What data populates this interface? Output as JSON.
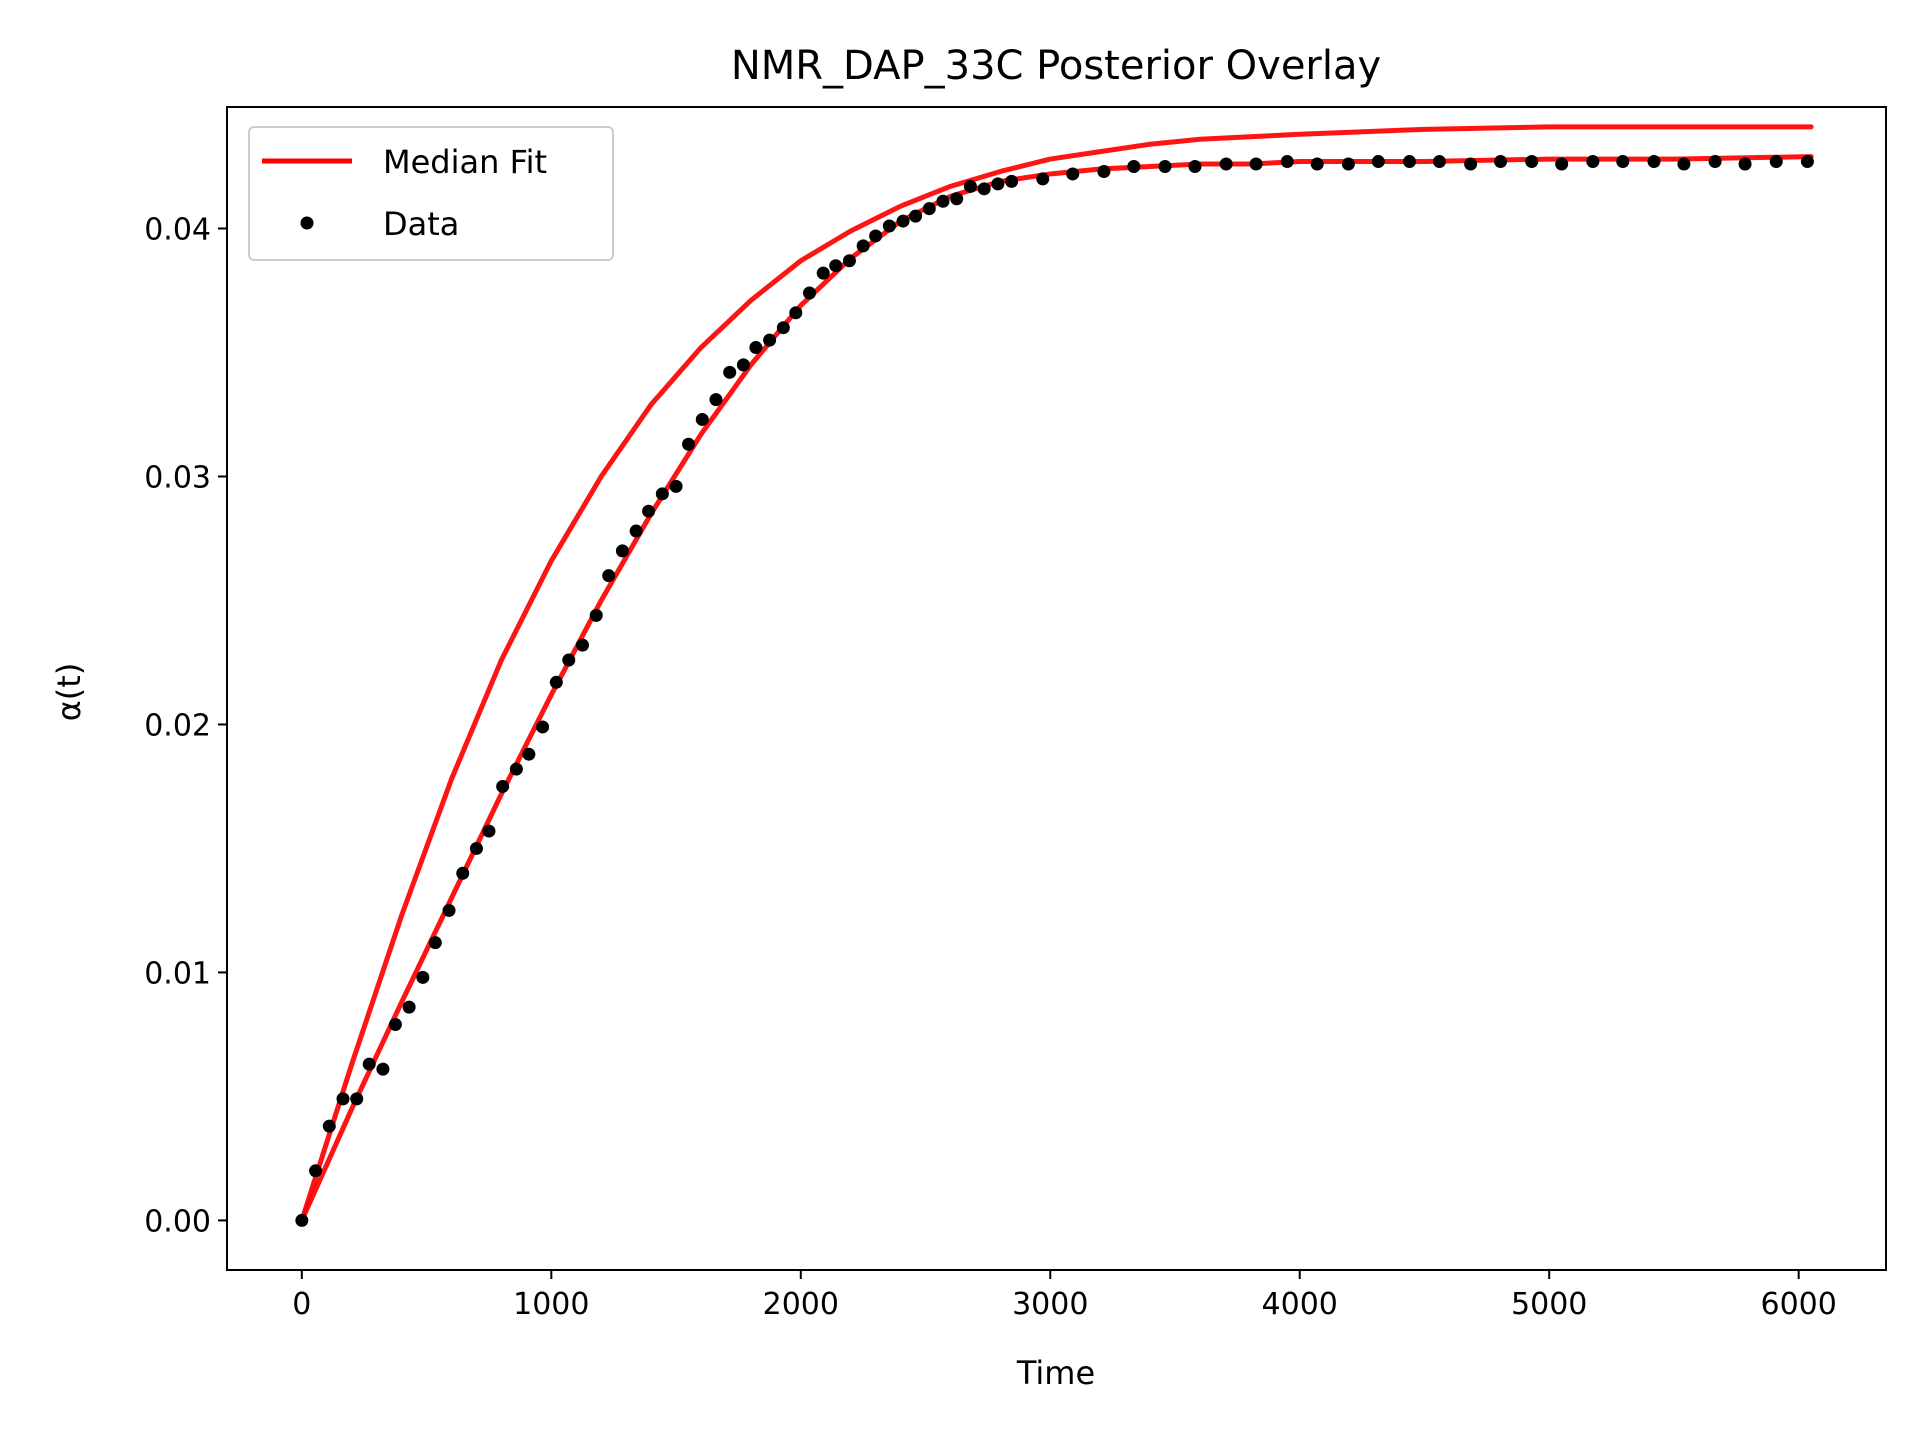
{
  "chart_data": {
    "type": "line",
    "title": "NMR_DAP_33C Posterior Overlay",
    "xlabel": "Time",
    "ylabel": "α(t)",
    "xlim": [
      -300,
      6350
    ],
    "ylim": [
      -0.002,
      0.0449
    ],
    "xticks": [
      0,
      1000,
      2000,
      3000,
      4000,
      5000,
      6000
    ],
    "xtick_labels": [
      "0",
      "1000",
      "2000",
      "3000",
      "4000",
      "5000",
      "6000"
    ],
    "yticks": [
      0.0,
      0.01,
      0.02,
      0.03,
      0.04
    ],
    "ytick_labels": [
      "0.00",
      "0.01",
      "0.02",
      "0.03",
      "0.04"
    ],
    "grid": false,
    "legend": {
      "position": "top-left",
      "entries": [
        "Median Fit",
        "Data"
      ]
    },
    "colors": {
      "fit": "#ff0000",
      "data": "#000000"
    },
    "series": [
      {
        "name": "Median Fit",
        "kind": "line",
        "x": [
          0,
          200,
          400,
          600,
          800,
          1000,
          1200,
          1400,
          1600,
          1800,
          2000,
          2200,
          2400,
          2600,
          2800,
          3000,
          3200,
          3400,
          3600,
          3800,
          4000,
          4500,
          5000,
          5500,
          6050
        ],
        "y": [
          0.0,
          0.0063,
          0.0123,
          0.0178,
          0.0226,
          0.0266,
          0.03,
          0.0329,
          0.0352,
          0.0371,
          0.0387,
          0.0399,
          0.0409,
          0.0417,
          0.0423,
          0.0428,
          0.0431,
          0.0434,
          0.0436,
          0.0437,
          0.0438,
          0.044,
          0.0441,
          0.0441,
          0.0441
        ]
      },
      {
        "name": "",
        "kind": "line",
        "x": [
          0,
          200,
          400,
          600,
          800,
          1000,
          1200,
          1400,
          1600,
          1800,
          2000,
          2200,
          2400,
          2600,
          2800,
          3000,
          3200,
          3400,
          3600,
          3800,
          4000,
          4500,
          5000,
          5500,
          6050
        ],
        "y": [
          0.0,
          0.0045,
          0.0088,
          0.013,
          0.0172,
          0.0212,
          0.025,
          0.0285,
          0.0317,
          0.0345,
          0.0369,
          0.0388,
          0.0403,
          0.0413,
          0.0419,
          0.0422,
          0.0424,
          0.0425,
          0.0426,
          0.0426,
          0.0427,
          0.0427,
          0.0428,
          0.0428,
          0.0429
        ]
      },
      {
        "name": "Data",
        "kind": "scatter",
        "x": [
          0,
          55,
          110,
          165,
          220,
          270,
          325,
          375,
          430,
          485,
          535,
          590,
          645,
          700,
          750,
          805,
          860,
          910,
          965,
          1020,
          1070,
          1125,
          1180,
          1230,
          1285,
          1340,
          1390,
          1445,
          1500,
          1550,
          1605,
          1660,
          1715,
          1770,
          1820,
          1875,
          1930,
          1980,
          2035,
          2090,
          2140,
          2195,
          2250,
          2300,
          2355,
          2410,
          2460,
          2515,
          2570,
          2625,
          2680,
          2735,
          2790,
          2845,
          2970,
          3090,
          3215,
          3335,
          3460,
          3580,
          3705,
          3825,
          3950,
          4070,
          4195,
          4315,
          4440,
          4560,
          4685,
          4805,
          4930,
          5050,
          5175,
          5295,
          5420,
          5540,
          5665,
          5785,
          5910,
          6035
        ],
        "y": [
          0.0,
          0.002,
          0.0038,
          0.0049,
          0.0049,
          0.0063,
          0.0061,
          0.0079,
          0.0086,
          0.0098,
          0.0112,
          0.0125,
          0.014,
          0.015,
          0.0157,
          0.0175,
          0.0182,
          0.0188,
          0.0199,
          0.0217,
          0.0226,
          0.0232,
          0.0244,
          0.026,
          0.027,
          0.0278,
          0.0286,
          0.0293,
          0.0296,
          0.0313,
          0.0323,
          0.0331,
          0.0342,
          0.0345,
          0.0352,
          0.0355,
          0.036,
          0.0366,
          0.0374,
          0.0382,
          0.0385,
          0.0387,
          0.0393,
          0.0397,
          0.0401,
          0.0403,
          0.0405,
          0.0408,
          0.0411,
          0.0412,
          0.0417,
          0.0416,
          0.0418,
          0.0419,
          0.042,
          0.0422,
          0.0423,
          0.0425,
          0.0425,
          0.0425,
          0.0426,
          0.0426,
          0.0427,
          0.0426,
          0.0426,
          0.0427,
          0.0427,
          0.0427,
          0.0426,
          0.0427,
          0.0427,
          0.0426,
          0.0427,
          0.0427,
          0.0427,
          0.0426,
          0.0427,
          0.0426,
          0.0427,
          0.0427
        ]
      }
    ]
  }
}
